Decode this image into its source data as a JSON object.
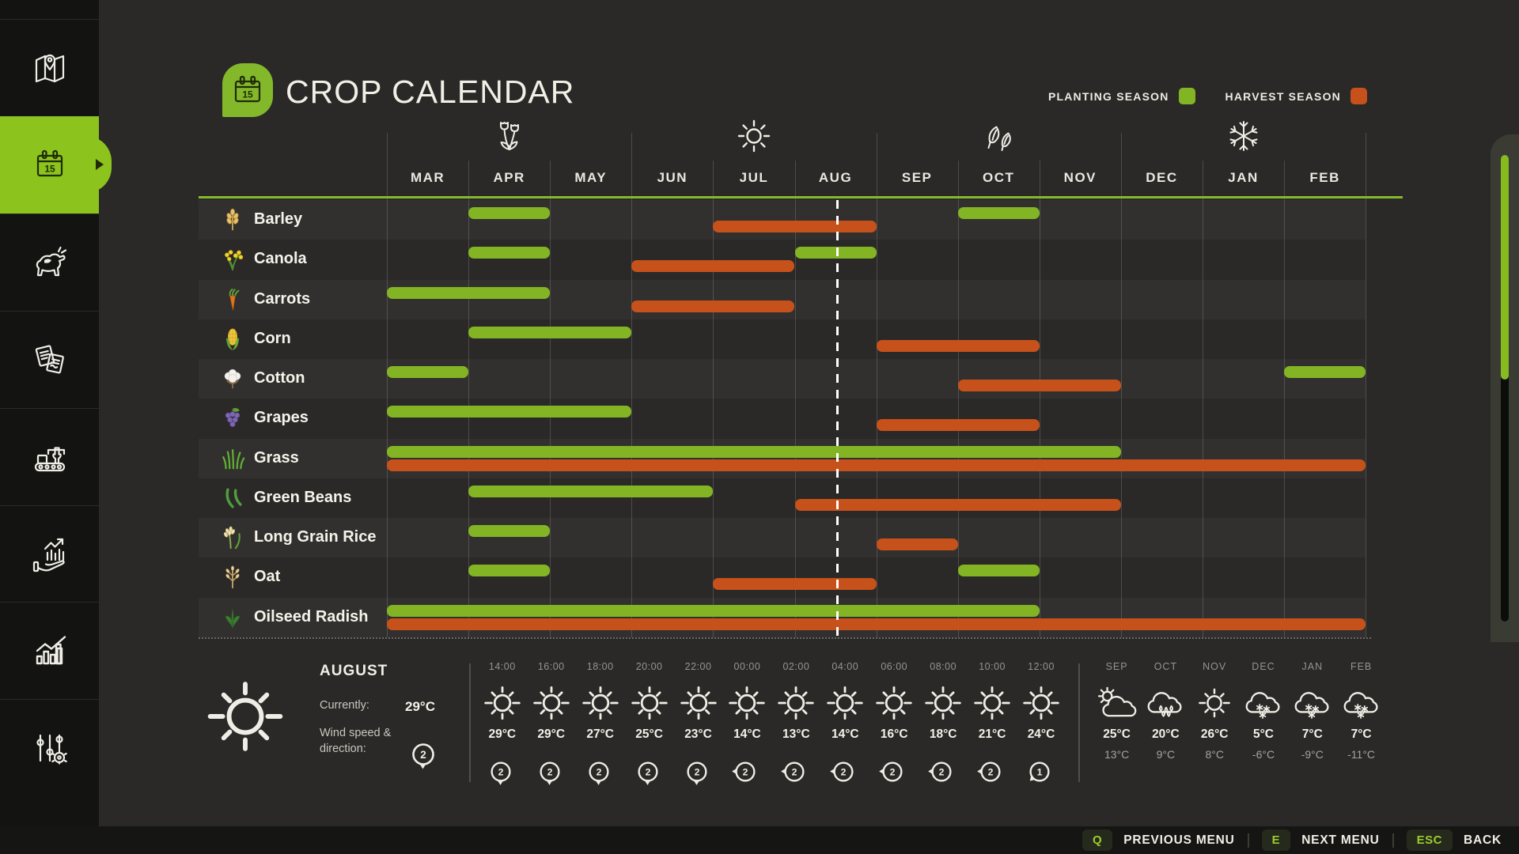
{
  "page": {
    "title": "CROP CALENDAR"
  },
  "legend": {
    "planting_label": "PLANTING SEASON",
    "harvest_label": "HARVEST SEASON",
    "planting_color": "#82b424",
    "harvest_color": "#c7511a"
  },
  "colors": {
    "accent_green": "#8cc31d",
    "title_icon_green": "#84b82b",
    "thumb_green": "#87bb20"
  },
  "sidebar": {
    "items": [
      {
        "id": "map",
        "icon": "map-icon",
        "selected": false
      },
      {
        "id": "crop-calendar",
        "icon": "calendar-icon",
        "selected": true
      },
      {
        "id": "animals",
        "icon": "cow-icon",
        "selected": false
      },
      {
        "id": "contracts",
        "icon": "contracts-icon",
        "selected": false
      },
      {
        "id": "production",
        "icon": "production-icon",
        "selected": false
      },
      {
        "id": "finances",
        "icon": "finance-icon",
        "selected": false
      },
      {
        "id": "statistics",
        "icon": "statistics-icon",
        "selected": false
      },
      {
        "id": "settings",
        "icon": "settings-icon",
        "selected": false
      }
    ]
  },
  "calendar": {
    "months": [
      "MAR",
      "APR",
      "MAY",
      "JUN",
      "JUL",
      "AUG",
      "SEP",
      "OCT",
      "NOV",
      "DEC",
      "JAN",
      "FEB"
    ],
    "season_icons": [
      {
        "name": "spring-flowers-icon",
        "month_index": 1
      },
      {
        "name": "summer-sun-icon",
        "month_index": 4
      },
      {
        "name": "autumn-leaves-icon",
        "month_index": 7
      },
      {
        "name": "winter-snowflake-icon",
        "month_index": 10
      }
    ],
    "current_date_month_fraction": 5.52,
    "crops": [
      {
        "name": "Barley",
        "icon": "barley-icon",
        "planting_ranges": [
          [
            1,
            1
          ],
          [
            7,
            7
          ]
        ],
        "harvest_ranges": [
          [
            4,
            5
          ]
        ]
      },
      {
        "name": "Canola",
        "icon": "canola-icon",
        "planting_ranges": [
          [
            1,
            1
          ],
          [
            5,
            5
          ]
        ],
        "harvest_ranges": [
          [
            3,
            4
          ]
        ]
      },
      {
        "name": "Carrots",
        "icon": "carrot-icon",
        "planting_ranges": [
          [
            0,
            1
          ]
        ],
        "harvest_ranges": [
          [
            3,
            4
          ]
        ]
      },
      {
        "name": "Corn",
        "icon": "corn-icon",
        "planting_ranges": [
          [
            1,
            2
          ]
        ],
        "harvest_ranges": [
          [
            6,
            7
          ]
        ]
      },
      {
        "name": "Cotton",
        "icon": "cotton-icon",
        "planting_ranges": [
          [
            0,
            0
          ],
          [
            11,
            11
          ]
        ],
        "harvest_ranges": [
          [
            7,
            8
          ]
        ]
      },
      {
        "name": "Grapes",
        "icon": "grapes-icon",
        "planting_ranges": [
          [
            0,
            2
          ]
        ],
        "harvest_ranges": [
          [
            6,
            7
          ]
        ]
      },
      {
        "name": "Grass",
        "icon": "grass-icon",
        "planting_ranges": [
          [
            0,
            8
          ]
        ],
        "harvest_ranges": [
          [
            0,
            11
          ]
        ]
      },
      {
        "name": "Green Beans",
        "icon": "green-beans-icon",
        "planting_ranges": [
          [
            1,
            3
          ]
        ],
        "harvest_ranges": [
          [
            5,
            8
          ]
        ]
      },
      {
        "name": "Long Grain Rice",
        "icon": "rice-icon",
        "planting_ranges": [
          [
            1,
            1
          ]
        ],
        "harvest_ranges": [
          [
            6,
            6
          ]
        ]
      },
      {
        "name": "Oat",
        "icon": "oat-icon",
        "planting_ranges": [
          [
            1,
            1
          ],
          [
            7,
            7
          ]
        ],
        "harvest_ranges": [
          [
            4,
            5
          ]
        ]
      },
      {
        "name": "Oilseed Radish",
        "icon": "radish-icon",
        "planting_ranges": [
          [
            0,
            7
          ]
        ],
        "harvest_ranges": [
          [
            0,
            11
          ]
        ]
      }
    ]
  },
  "weather": {
    "current": {
      "month": "AUGUST",
      "currently_label": "Currently:",
      "temperature": "29°C",
      "wind_label": "Wind speed & direction:",
      "wind_value": "2",
      "wind_direction": "down",
      "icon": "sun-icon"
    },
    "hourly": [
      {
        "time": "14:00",
        "icon": "sun-icon",
        "temp": "29°C",
        "wind": "2",
        "wind_direction": "down"
      },
      {
        "time": "16:00",
        "icon": "sun-icon",
        "temp": "29°C",
        "wind": "2",
        "wind_direction": "down"
      },
      {
        "time": "18:00",
        "icon": "sun-icon",
        "temp": "27°C",
        "wind": "2",
        "wind_direction": "down"
      },
      {
        "time": "20:00",
        "icon": "sun-icon",
        "temp": "25°C",
        "wind": "2",
        "wind_direction": "down"
      },
      {
        "time": "22:00",
        "icon": "sun-icon",
        "temp": "23°C",
        "wind": "2",
        "wind_direction": "down"
      },
      {
        "time": "00:00",
        "icon": "sun-icon",
        "temp": "14°C",
        "wind": "2",
        "wind_direction": "left"
      },
      {
        "time": "02:00",
        "icon": "sun-icon",
        "temp": "13°C",
        "wind": "2",
        "wind_direction": "left"
      },
      {
        "time": "04:00",
        "icon": "sun-icon",
        "temp": "14°C",
        "wind": "2",
        "wind_direction": "left"
      },
      {
        "time": "06:00",
        "icon": "sun-icon",
        "temp": "16°C",
        "wind": "2",
        "wind_direction": "left"
      },
      {
        "time": "08:00",
        "icon": "sun-icon",
        "temp": "18°C",
        "wind": "2",
        "wind_direction": "left"
      },
      {
        "time": "10:00",
        "icon": "sun-icon",
        "temp": "21°C",
        "wind": "2",
        "wind_direction": "left"
      },
      {
        "time": "12:00",
        "icon": "sun-icon",
        "temp": "24°C",
        "wind": "1",
        "wind_direction": "down-left"
      }
    ],
    "monthly": [
      {
        "month": "SEP",
        "icon": "sun-cloud-icon",
        "high": "25°C",
        "low": "13°C"
      },
      {
        "month": "OCT",
        "icon": "rain-cloud-icon",
        "high": "20°C",
        "low": "9°C"
      },
      {
        "month": "NOV",
        "icon": "sun-icon",
        "high": "26°C",
        "low": "8°C"
      },
      {
        "month": "DEC",
        "icon": "snow-cloud-icon",
        "high": "5°C",
        "low": "-6°C"
      },
      {
        "month": "JAN",
        "icon": "snow-cloud-icon",
        "high": "7°C",
        "low": "-9°C"
      },
      {
        "month": "FEB",
        "icon": "snow-cloud-icon",
        "high": "7°C",
        "low": "-11°C"
      }
    ]
  },
  "menu_bar": {
    "items": [
      {
        "key": "Q",
        "label": "PREVIOUS MENU"
      },
      {
        "key": "E",
        "label": "NEXT MENU"
      },
      {
        "key": "ESC",
        "label": "BACK"
      }
    ]
  }
}
